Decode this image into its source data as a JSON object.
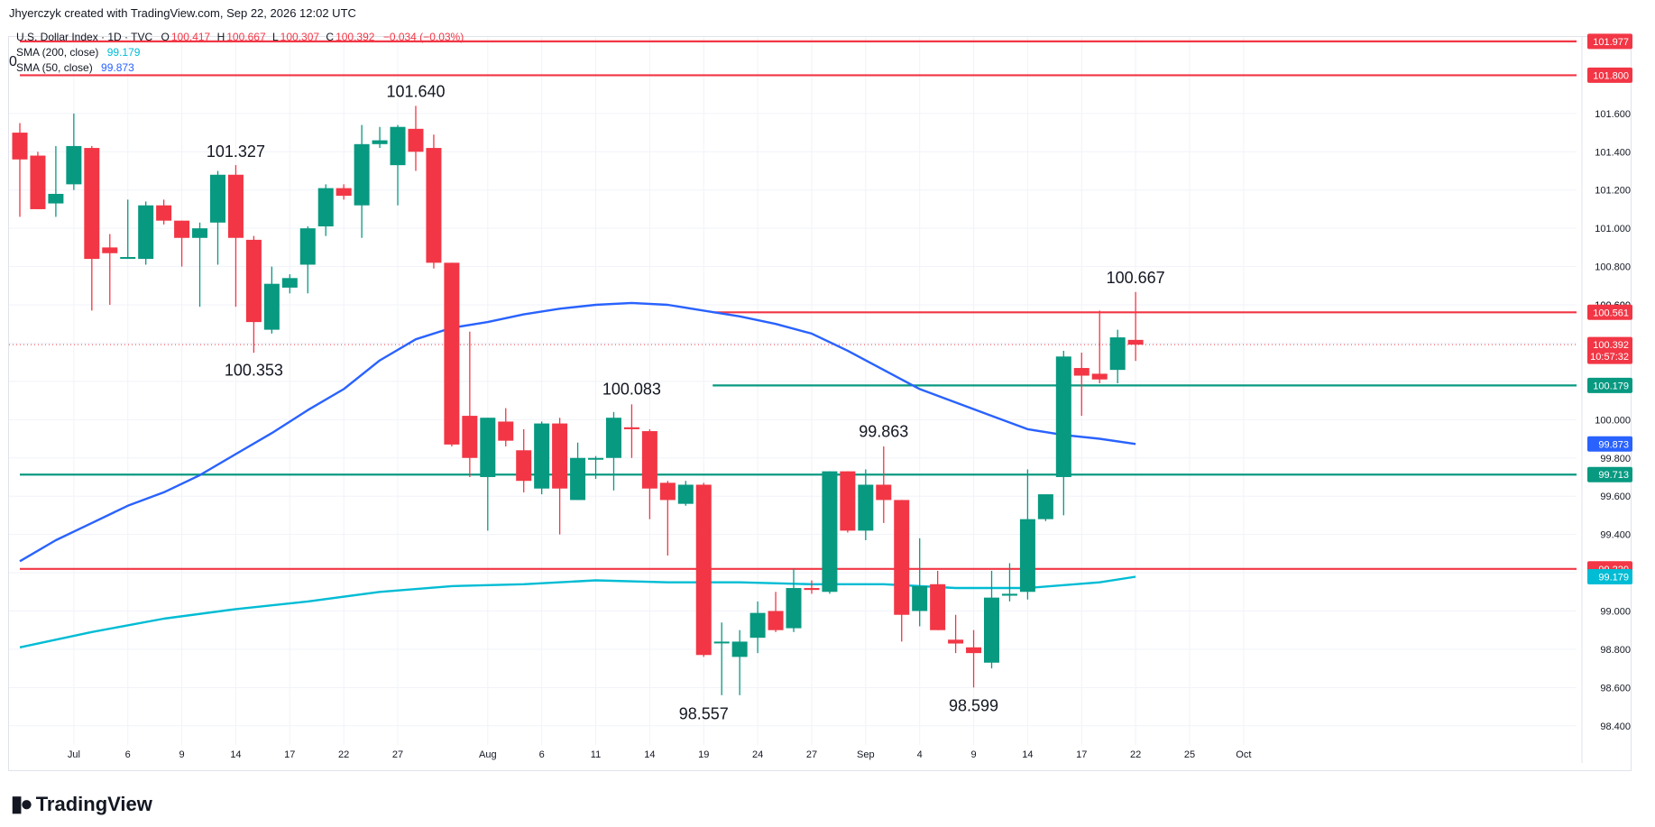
{
  "header": {
    "credit": "Jhyerczyk created with TradingView.com, Sep 22, 2026 12:02 UTC"
  },
  "legend": {
    "symbol": "U.S. Dollar Index · 1D · TVC",
    "open_label": "O",
    "open": "100.417",
    "high_label": "H",
    "high": "100.667",
    "low_label": "L",
    "low": "100.307",
    "close_label": "C",
    "close": "100.392",
    "change": "−0.034 (−0.03%)",
    "sma200_label": "SMA (200, close)",
    "sma200_value": "99.179",
    "sma50_label": "SMA (50, close)",
    "sma50_value": "99.873",
    "stray_zero": "0"
  },
  "footer": {
    "brand": "TradingView",
    "logo": "tradingview-logo-icon"
  },
  "colors": {
    "up": "#089981",
    "down": "#f23645",
    "sma50": "#2962ff",
    "sma200": "#00bcd4",
    "grid": "#f0f3fa",
    "axis_text": "#131722"
  },
  "chart_data": {
    "type": "candlestick",
    "title": "U.S. Dollar Index · 1D · TVC",
    "ylim": [
      98.3,
      102.0
    ],
    "xlim": [
      0,
      86.5
    ],
    "yticks": [
      "98.400",
      "98.600",
      "98.800",
      "99.000",
      "99.200",
      "99.400",
      "99.600",
      "99.800",
      "100.000",
      "100.200",
      "100.400",
      "100.600",
      "100.800",
      "101.000",
      "101.200",
      "101.400",
      "101.600"
    ],
    "xticks": [
      {
        "i": 3,
        "label": "Jul"
      },
      {
        "i": 6,
        "label": "6"
      },
      {
        "i": 9,
        "label": "9"
      },
      {
        "i": 12,
        "label": "14"
      },
      {
        "i": 15,
        "label": "17"
      },
      {
        "i": 18,
        "label": "22"
      },
      {
        "i": 21,
        "label": "27"
      },
      {
        "i": 26,
        "label": "Aug"
      },
      {
        "i": 29,
        "label": "6"
      },
      {
        "i": 32,
        "label": "11"
      },
      {
        "i": 35,
        "label": "14"
      },
      {
        "i": 38,
        "label": "19"
      },
      {
        "i": 41,
        "label": "24"
      },
      {
        "i": 44,
        "label": "27"
      },
      {
        "i": 47,
        "label": "Sep"
      },
      {
        "i": 50,
        "label": "4"
      },
      {
        "i": 53,
        "label": "9"
      },
      {
        "i": 56,
        "label": "14"
      },
      {
        "i": 59,
        "label": "17"
      },
      {
        "i": 62,
        "label": "22"
      },
      {
        "i": 65,
        "label": "25"
      },
      {
        "i": 68,
        "label": "Oct"
      }
    ],
    "candles": [
      {
        "o": 101.5,
        "h": 101.55,
        "l": 101.06,
        "c": 101.36
      },
      {
        "o": 101.38,
        "h": 101.4,
        "l": 101.1,
        "c": 101.1
      },
      {
        "o": 101.13,
        "h": 101.43,
        "l": 101.06,
        "c": 101.18
      },
      {
        "o": 101.23,
        "h": 101.6,
        "l": 101.2,
        "c": 101.43
      },
      {
        "o": 101.42,
        "h": 101.43,
        "l": 100.57,
        "c": 100.84
      },
      {
        "o": 100.9,
        "h": 100.97,
        "l": 100.6,
        "c": 100.87
      },
      {
        "o": 100.85,
        "h": 101.15,
        "l": 100.84,
        "c": 100.85
      },
      {
        "o": 100.84,
        "h": 101.14,
        "l": 100.81,
        "c": 101.12
      },
      {
        "o": 101.12,
        "h": 101.15,
        "l": 101.02,
        "c": 101.04
      },
      {
        "o": 101.04,
        "h": 101.04,
        "l": 100.8,
        "c": 100.95
      },
      {
        "o": 100.95,
        "h": 101.03,
        "l": 100.59,
        "c": 101.0
      },
      {
        "o": 101.03,
        "h": 101.3,
        "l": 100.81,
        "c": 101.28
      },
      {
        "o": 101.28,
        "h": 101.33,
        "l": 100.59,
        "c": 100.95
      },
      {
        "o": 100.94,
        "h": 100.96,
        "l": 100.35,
        "c": 100.51
      },
      {
        "o": 100.47,
        "h": 100.8,
        "l": 100.45,
        "c": 100.71
      },
      {
        "o": 100.69,
        "h": 100.76,
        "l": 100.66,
        "c": 100.74
      },
      {
        "o": 100.81,
        "h": 101.01,
        "l": 100.66,
        "c": 101.0
      },
      {
        "o": 101.01,
        "h": 101.23,
        "l": 100.96,
        "c": 101.21
      },
      {
        "o": 101.21,
        "h": 101.23,
        "l": 101.15,
        "c": 101.17
      },
      {
        "o": 101.12,
        "h": 101.54,
        "l": 100.95,
        "c": 101.44
      },
      {
        "o": 101.44,
        "h": 101.53,
        "l": 101.42,
        "c": 101.46
      },
      {
        "o": 101.33,
        "h": 101.54,
        "l": 101.12,
        "c": 101.53
      },
      {
        "o": 101.52,
        "h": 101.64,
        "l": 101.3,
        "c": 101.4
      },
      {
        "o": 101.42,
        "h": 101.49,
        "l": 100.79,
        "c": 100.82
      },
      {
        "o": 100.82,
        "h": 100.82,
        "l": 99.86,
        "c": 99.87
      },
      {
        "o": 100.02,
        "h": 100.46,
        "l": 99.7,
        "c": 99.8
      },
      {
        "o": 99.7,
        "h": 100.01,
        "l": 99.42,
        "c": 100.01
      },
      {
        "o": 99.99,
        "h": 100.06,
        "l": 99.86,
        "c": 99.89
      },
      {
        "o": 99.84,
        "h": 99.95,
        "l": 99.62,
        "c": 99.68
      },
      {
        "o": 99.64,
        "h": 99.99,
        "l": 99.61,
        "c": 99.98
      },
      {
        "o": 99.98,
        "h": 100.01,
        "l": 99.4,
        "c": 99.64
      },
      {
        "o": 99.58,
        "h": 99.88,
        "l": 99.58,
        "c": 99.8
      },
      {
        "o": 99.8,
        "h": 99.81,
        "l": 99.69,
        "c": 99.8
      },
      {
        "o": 99.8,
        "h": 100.04,
        "l": 99.63,
        "c": 100.01
      },
      {
        "o": 99.96,
        "h": 100.08,
        "l": 99.8,
        "c": 99.95
      },
      {
        "o": 99.94,
        "h": 99.95,
        "l": 99.48,
        "c": 99.64
      },
      {
        "o": 99.67,
        "h": 99.68,
        "l": 99.29,
        "c": 99.58
      },
      {
        "o": 99.56,
        "h": 99.68,
        "l": 99.55,
        "c": 99.66
      },
      {
        "o": 99.66,
        "h": 99.67,
        "l": 98.76,
        "c": 98.77
      },
      {
        "o": 98.84,
        "h": 98.94,
        "l": 98.56,
        "c": 98.84
      },
      {
        "o": 98.76,
        "h": 98.9,
        "l": 98.56,
        "c": 98.84
      },
      {
        "o": 98.86,
        "h": 99.05,
        "l": 98.78,
        "c": 98.99
      },
      {
        "o": 99.0,
        "h": 99.1,
        "l": 98.89,
        "c": 98.9
      },
      {
        "o": 98.91,
        "h": 99.22,
        "l": 98.89,
        "c": 99.12
      },
      {
        "o": 99.12,
        "h": 99.16,
        "l": 99.09,
        "c": 99.11
      },
      {
        "o": 99.1,
        "h": 99.73,
        "l": 99.09,
        "c": 99.73
      },
      {
        "o": 99.73,
        "h": 99.73,
        "l": 99.41,
        "c": 99.42
      },
      {
        "o": 99.42,
        "h": 99.74,
        "l": 99.37,
        "c": 99.66
      },
      {
        "o": 99.66,
        "h": 99.86,
        "l": 99.46,
        "c": 99.58
      },
      {
        "o": 99.58,
        "h": 99.58,
        "l": 98.84,
        "c": 98.98
      },
      {
        "o": 99.0,
        "h": 99.38,
        "l": 98.92,
        "c": 99.13
      },
      {
        "o": 99.14,
        "h": 99.21,
        "l": 98.9,
        "c": 98.9
      },
      {
        "o": 98.85,
        "h": 98.98,
        "l": 98.78,
        "c": 98.83
      },
      {
        "o": 98.81,
        "h": 98.9,
        "l": 98.6,
        "c": 98.78
      },
      {
        "o": 98.73,
        "h": 99.21,
        "l": 98.7,
        "c": 99.07
      },
      {
        "o": 99.08,
        "h": 99.25,
        "l": 99.05,
        "c": 99.09
      },
      {
        "o": 99.1,
        "h": 99.74,
        "l": 99.06,
        "c": 99.48
      },
      {
        "o": 99.48,
        "h": 99.6,
        "l": 99.47,
        "c": 99.61
      },
      {
        "o": 99.7,
        "h": 100.36,
        "l": 99.5,
        "c": 100.33
      },
      {
        "o": 100.27,
        "h": 100.35,
        "l": 100.02,
        "c": 100.23
      },
      {
        "o": 100.24,
        "h": 100.57,
        "l": 100.19,
        "c": 100.21
      },
      {
        "o": 100.26,
        "h": 100.47,
        "l": 100.19,
        "c": 100.43
      },
      {
        "o": 100.417,
        "h": 100.667,
        "l": 100.307,
        "c": 100.392
      }
    ],
    "sma50": [
      [
        0,
        99.26
      ],
      [
        2,
        99.37
      ],
      [
        4,
        99.46
      ],
      [
        6,
        99.55
      ],
      [
        8,
        99.62
      ],
      [
        10,
        99.71
      ],
      [
        12,
        99.82
      ],
      [
        14,
        99.93
      ],
      [
        16,
        100.05
      ],
      [
        18,
        100.16
      ],
      [
        20,
        100.31
      ],
      [
        22,
        100.42
      ],
      [
        24,
        100.48
      ],
      [
        26,
        100.51
      ],
      [
        28,
        100.55
      ],
      [
        30,
        100.58
      ],
      [
        32,
        100.6
      ],
      [
        34,
        100.61
      ],
      [
        36,
        100.6
      ],
      [
        38,
        100.57
      ],
      [
        40,
        100.54
      ],
      [
        42,
        100.5
      ],
      [
        44,
        100.45
      ],
      [
        46,
        100.36
      ],
      [
        48,
        100.26
      ],
      [
        50,
        100.16
      ],
      [
        52,
        100.09
      ],
      [
        54,
        100.02
      ],
      [
        56,
        99.95
      ],
      [
        58,
        99.92
      ],
      [
        60,
        99.9
      ],
      [
        62,
        99.873
      ]
    ],
    "sma200": [
      [
        0,
        98.81
      ],
      [
        4,
        98.89
      ],
      [
        8,
        98.96
      ],
      [
        12,
        99.01
      ],
      [
        16,
        99.05
      ],
      [
        20,
        99.1
      ],
      [
        24,
        99.13
      ],
      [
        28,
        99.14
      ],
      [
        32,
        99.16
      ],
      [
        36,
        99.15
      ],
      [
        40,
        99.15
      ],
      [
        44,
        99.14
      ],
      [
        48,
        99.14
      ],
      [
        52,
        99.12
      ],
      [
        56,
        99.12
      ],
      [
        60,
        99.15
      ],
      [
        62,
        99.179
      ]
    ],
    "hlines": [
      {
        "y": 101.977,
        "label": "101.977",
        "color": "#f23645",
        "x_start": 0
      },
      {
        "y": 101.8,
        "label": "101.800",
        "color": "#f23645",
        "x_start": 0
      },
      {
        "y": 100.561,
        "label": "100.561",
        "color": "#f23645",
        "x_start": 38.5
      },
      {
        "y": 100.179,
        "label": "100.179",
        "color": "#089981",
        "x_start": 38.5
      },
      {
        "y": 99.713,
        "label": "99.713",
        "color": "#089981",
        "x_start": 0
      },
      {
        "y": 99.22,
        "label": "99.220",
        "color": "#f23645",
        "x_start": 0
      }
    ],
    "price_tags": [
      {
        "y": 100.392,
        "label": "100.392",
        "sub": "10:57:32",
        "color": "#f23645"
      },
      {
        "y": 99.873,
        "label": "99.873",
        "color": "#2962ff"
      },
      {
        "y": 99.179,
        "label": "99.179",
        "color": "#00bcd4"
      }
    ],
    "axis_partial_labels": [
      {
        "y": 100.6,
        "label": "100.600"
      },
      {
        "y": 100.2,
        "label": "100.200"
      }
    ],
    "annotations": [
      {
        "i": 22,
        "y": 101.64,
        "label": "101.640",
        "pos": "above"
      },
      {
        "i": 12,
        "y": 101.327,
        "label": "101.327",
        "pos": "above"
      },
      {
        "i": 13,
        "y": 100.353,
        "label": "100.353",
        "pos": "below"
      },
      {
        "i": 34,
        "y": 100.083,
        "label": "100.083",
        "pos": "above"
      },
      {
        "i": 38,
        "y": 98.557,
        "label": "98.557",
        "pos": "below"
      },
      {
        "i": 48,
        "y": 99.863,
        "label": "99.863",
        "pos": "above"
      },
      {
        "i": 53,
        "y": 98.599,
        "label": "98.599",
        "pos": "below"
      },
      {
        "i": 62,
        "y": 100.667,
        "label": "100.667",
        "pos": "above"
      }
    ],
    "current_price": 100.392
  }
}
